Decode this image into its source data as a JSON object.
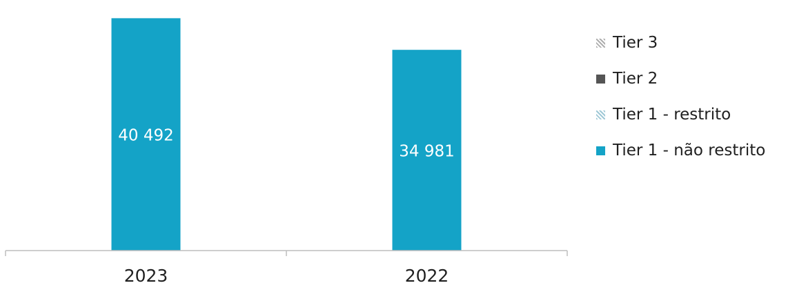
{
  "chart_data": {
    "type": "bar",
    "stacked": true,
    "categories": [
      "2023",
      "2022"
    ],
    "series": [
      {
        "name": "Tier 1 - não restrito",
        "values": [
          40492,
          34981
        ],
        "color": "#14a3c7",
        "labels": [
          "40 492",
          "34 981"
        ]
      },
      {
        "name": "Tier 1 - restrito",
        "values": [
          0,
          0
        ],
        "color": "#9fc8d6"
      },
      {
        "name": "Tier 2",
        "values": [
          0,
          0
        ],
        "color": "#555555"
      },
      {
        "name": "Tier 3",
        "values": [
          0,
          0
        ],
        "color": "#9a9a9a"
      }
    ],
    "ylim": [
      0,
      41500
    ],
    "grid": false,
    "legend_position": "right",
    "legend_order": [
      "Tier 3",
      "Tier 2",
      "Tier 1 - restrito",
      "Tier 1 - não restrito"
    ],
    "axis_color": "#bdbdbd",
    "label_color": "#ffffff"
  },
  "legend": {
    "tier3": "Tier 3",
    "tier2": "Tier 2",
    "tier1_restricted": "Tier 1 - restrito",
    "tier1_unrestricted": "Tier 1 - não restrito"
  }
}
